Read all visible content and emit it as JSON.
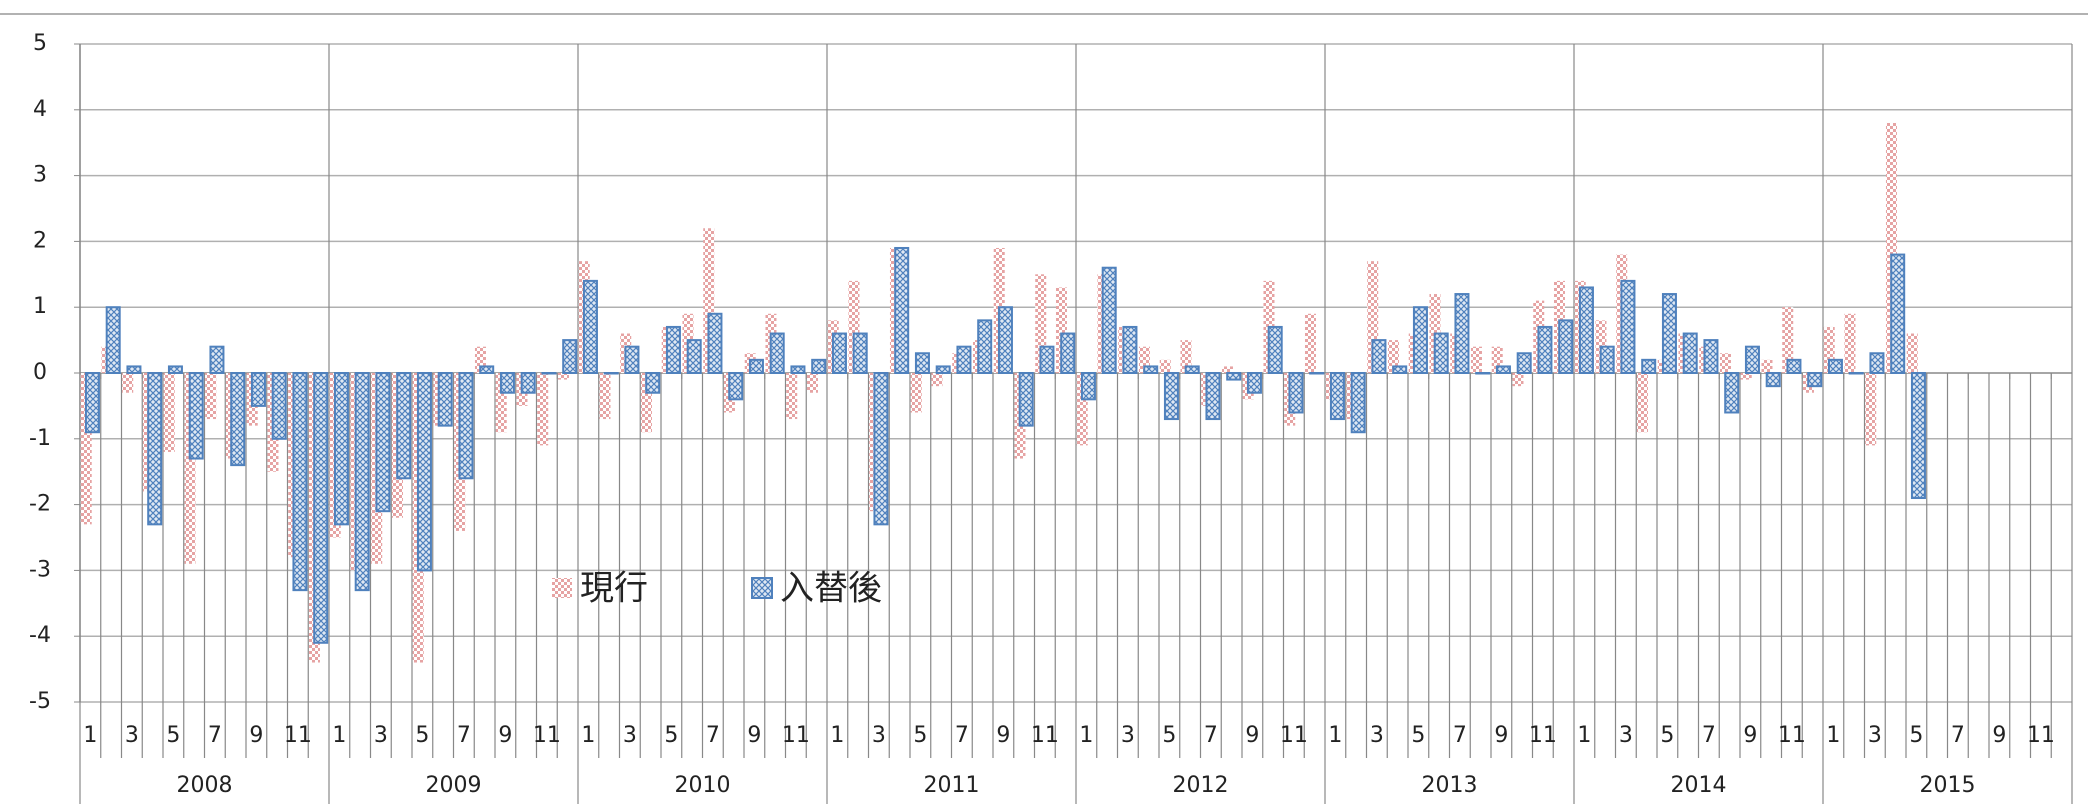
{
  "chart_data": {
    "type": "bar",
    "categories": [
      "1",
      null,
      "3",
      null,
      "5",
      null,
      "7",
      null,
      "9",
      null,
      "11",
      null,
      "1",
      null,
      "3",
      null,
      "5",
      null,
      "7",
      null,
      "9",
      null,
      "11",
      null,
      "1",
      null,
      "3",
      null,
      "5",
      null,
      "7",
      null,
      "9",
      null,
      "11",
      null,
      "1",
      null,
      "3",
      null,
      "5",
      null,
      "7",
      null,
      "9",
      null,
      "11",
      null,
      "1",
      null,
      "3",
      null,
      "5",
      null,
      "7",
      null,
      "9",
      null,
      "11",
      null,
      "1",
      null,
      "3",
      null,
      "5",
      null,
      "7",
      null,
      "9",
      null,
      "11",
      null,
      "1",
      null,
      "3",
      null,
      "5",
      null,
      "7",
      null,
      "9",
      null,
      "11",
      null,
      "1",
      null,
      "3",
      null,
      "5",
      null,
      "7",
      null,
      "9",
      null,
      "11",
      null
    ],
    "years": [
      "2008",
      "2009",
      "2010",
      "2011",
      "2012",
      "2013",
      "2014",
      "2015"
    ],
    "series": [
      {
        "name": "現行",
        "color": "#e6a3a3",
        "values": [
          -2.3,
          0.4,
          -0.3,
          -1.8,
          -1.2,
          -2.9,
          -0.7,
          -1.3,
          -0.8,
          -1.5,
          -2.8,
          -4.4,
          -2.5,
          -3.0,
          -2.9,
          -2.2,
          -4.4,
          -0.8,
          -2.4,
          0.4,
          -0.9,
          -0.5,
          -1.1,
          -0.1,
          1.7,
          -0.7,
          0.6,
          -0.9,
          0.7,
          0.9,
          2.2,
          -0.6,
          0.3,
          0.9,
          -0.7,
          -0.3,
          0.8,
          1.4,
          -2.1,
          1.9,
          -0.6,
          -0.2,
          0.3,
          0.5,
          1.9,
          -1.3,
          1.5,
          1.3,
          -1.1,
          1.5,
          0.7,
          0.4,
          0.2,
          0.5,
          -0.5,
          0.1,
          -0.4,
          1.4,
          -0.8,
          0.9,
          -0.4,
          -0.7,
          1.7,
          0.5,
          0.6,
          1.2,
          0.6,
          0.4,
          0.4,
          -0.2,
          1.1,
          1.4,
          1.4,
          0.8,
          1.8,
          -0.9,
          0.2,
          0.6,
          0.4,
          0.3,
          -0.1,
          0.2,
          1.0,
          -0.3,
          0.7,
          0.9,
          -1.1,
          3.8,
          0.6,
          null,
          null,
          null,
          null,
          null,
          null,
          null
        ]
      },
      {
        "name": "入替後",
        "color": "#4f81bd",
        "values": [
          -0.9,
          1.0,
          0.1,
          -2.3,
          0.1,
          -1.3,
          0.4,
          -1.4,
          -0.5,
          -1.0,
          -3.3,
          -4.1,
          -2.3,
          -3.3,
          -2.1,
          -1.6,
          -3.0,
          -0.8,
          -1.6,
          0.1,
          -0.3,
          -0.3,
          0,
          0.5,
          1.4,
          0,
          0.4,
          -0.3,
          0.7,
          0.5,
          0.9,
          -0.4,
          0.2,
          0.6,
          0.1,
          0.2,
          0.6,
          0.6,
          -2.3,
          1.9,
          0.3,
          0.1,
          0.4,
          0.8,
          1.0,
          -0.8,
          0.4,
          0.6,
          -0.4,
          1.6,
          0.7,
          0.1,
          -0.7,
          0.1,
          -0.7,
          -0.1,
          -0.3,
          0.7,
          -0.6,
          0,
          -0.7,
          -0.9,
          0.5,
          0.1,
          1.0,
          0.6,
          1.2,
          0,
          0.1,
          0.3,
          0.7,
          0.8,
          1.3,
          0.4,
          1.4,
          0.2,
          1.2,
          0.6,
          0.5,
          -0.6,
          0.4,
          -0.2,
          0.2,
          -0.2,
          0.2,
          0,
          0.3,
          1.8,
          -1.9,
          null,
          null,
          null,
          null,
          null,
          null,
          null
        ]
      }
    ],
    "ylim": [
      -5,
      5
    ],
    "yticks": [
      -5,
      -4,
      -3,
      -2,
      -1,
      0,
      1,
      2,
      3,
      4,
      5
    ],
    "grid": true
  }
}
